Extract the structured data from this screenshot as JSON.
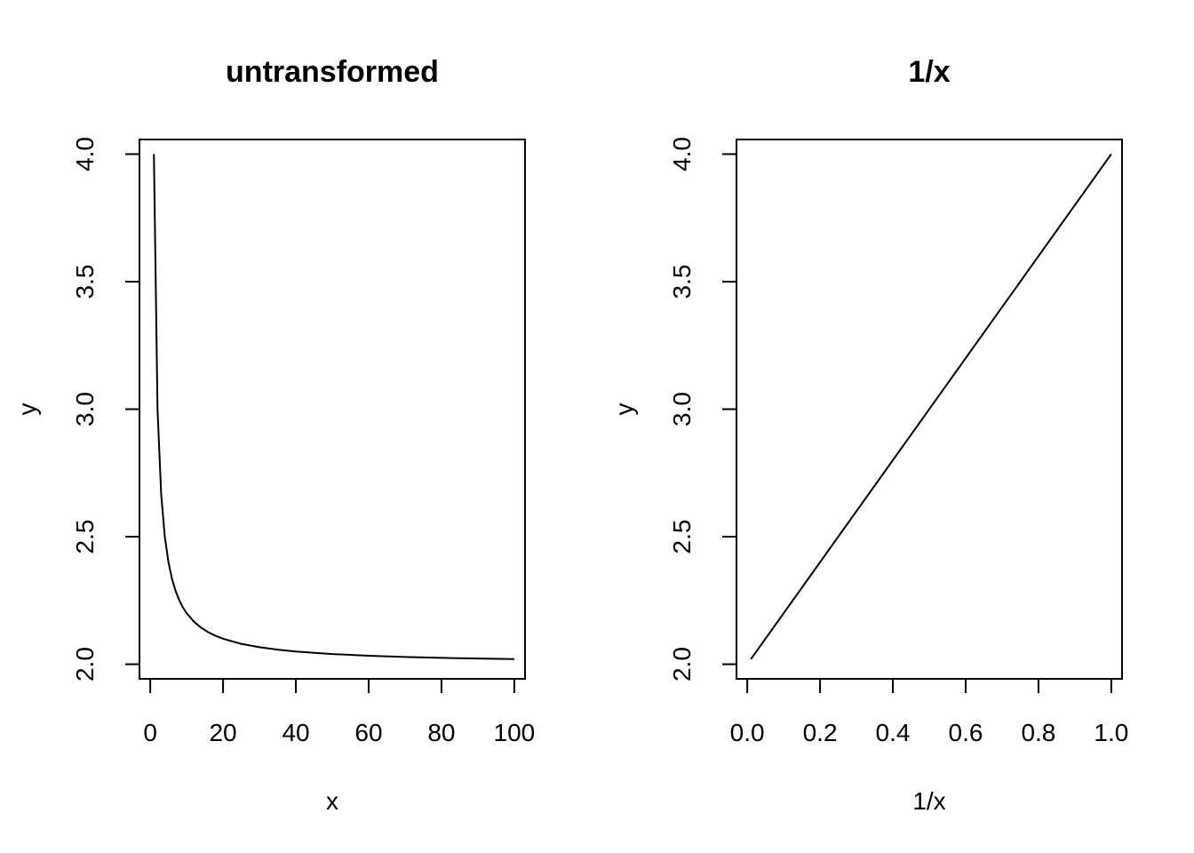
{
  "chart_data": [
    {
      "type": "line",
      "title": "untransformed",
      "xlabel": "x",
      "ylabel": "y",
      "xlim": [
        -2.96,
        102.96
      ],
      "ylim": [
        1.9427,
        4.0573
      ],
      "xticks": [
        0,
        20,
        40,
        60,
        80,
        100
      ],
      "xtick_labels": [
        "0",
        "20",
        "40",
        "60",
        "80",
        "100"
      ],
      "yticks": [
        2.0,
        2.5,
        3.0,
        3.5,
        4.0
      ],
      "ytick_labels": [
        "2.0",
        "2.5",
        "3.0",
        "3.5",
        "4.0"
      ],
      "grid": false,
      "series": [
        {
          "x": [
            1,
            2,
            3,
            4,
            5,
            6,
            7,
            8,
            9,
            10,
            12,
            14,
            16,
            18,
            20,
            25,
            30,
            35,
            40,
            50,
            60,
            70,
            80,
            90,
            100
          ],
          "y": [
            4.0,
            3.0,
            2.6667,
            2.5,
            2.4,
            2.3333,
            2.2857,
            2.25,
            2.2222,
            2.2,
            2.1667,
            2.1429,
            2.125,
            2.1111,
            2.1,
            2.08,
            2.0667,
            2.0571,
            2.05,
            2.04,
            2.0333,
            2.0286,
            2.025,
            2.0222,
            2.02
          ]
        }
      ]
    },
    {
      "type": "line",
      "title": "1/x",
      "xlabel": "1/x",
      "ylabel": "y",
      "xlim": [
        -0.0296,
        1.0296
      ],
      "ylim": [
        1.9427,
        4.0573
      ],
      "xticks": [
        0.0,
        0.2,
        0.4,
        0.6,
        0.8,
        1.0
      ],
      "xtick_labels": [
        "0.0",
        "0.2",
        "0.4",
        "0.6",
        "0.8",
        "1.0"
      ],
      "yticks": [
        2.0,
        2.5,
        3.0,
        3.5,
        4.0
      ],
      "ytick_labels": [
        "2.0",
        "2.5",
        "3.0",
        "3.5",
        "4.0"
      ],
      "grid": false,
      "series": [
        {
          "x": [
            0.01,
            1.0
          ],
          "y": [
            2.02,
            4.0
          ]
        }
      ]
    }
  ]
}
